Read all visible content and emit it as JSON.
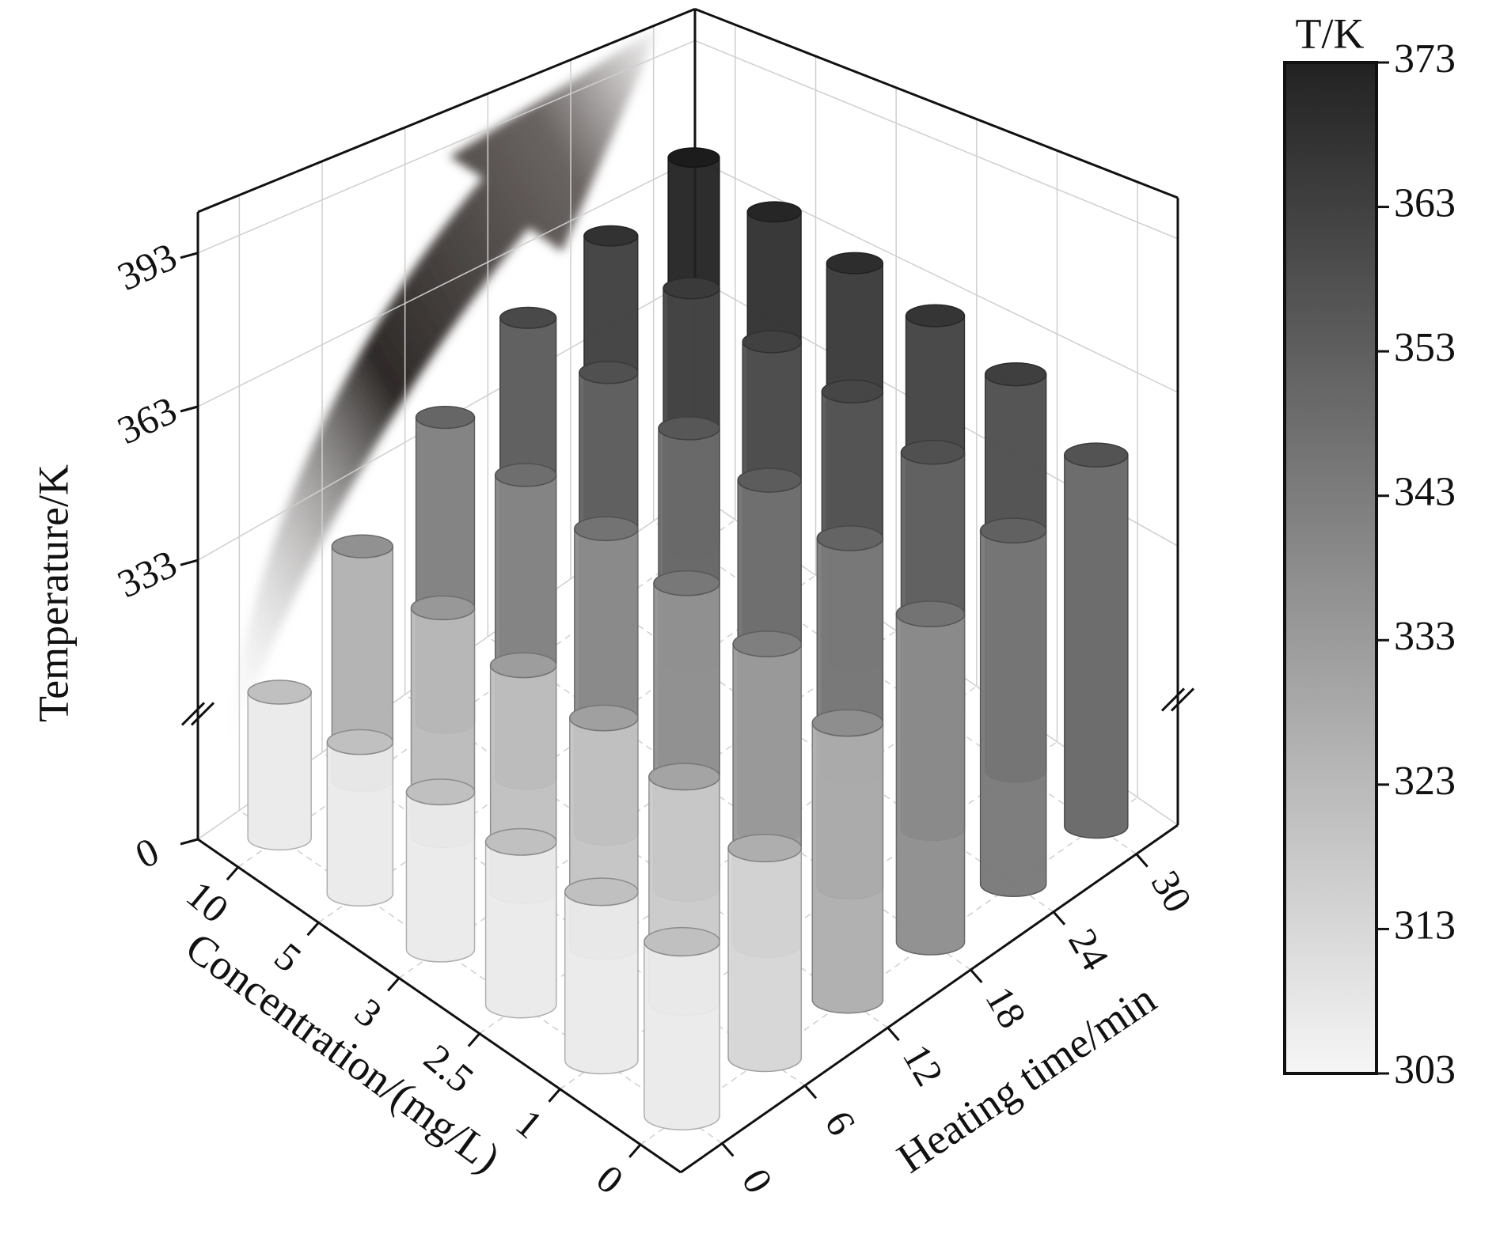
{
  "chart_data": {
    "type": "bar3d",
    "zlabel": "Temperature/K",
    "xlabel": "Concentration/(mg/L)",
    "ylabel": "Heating time/min",
    "x_categories": [
      "10",
      "5",
      "3",
      "2.5",
      "1",
      "0"
    ],
    "y_categories": [
      "0",
      "6",
      "12",
      "18",
      "24",
      "30"
    ],
    "values": [
      [
        307,
        307,
        307,
        307,
        307,
        307
      ],
      [
        326,
        323,
        321,
        320,
        318,
        314
      ],
      [
        343,
        340,
        338,
        336,
        333,
        327
      ],
      [
        355,
        352,
        349,
        347,
        344,
        338
      ],
      [
        364,
        361,
        358,
        356,
        352,
        345
      ],
      [
        373,
        369,
        366,
        363,
        359,
        351
      ]
    ],
    "zlim": [
      0,
      401
    ],
    "zbreak": 303,
    "zticks": [
      0,
      333,
      363,
      393
    ],
    "colorbar": {
      "label": "T/K",
      "lim": [
        303,
        373
      ],
      "ticks": [
        303,
        313,
        323,
        333,
        343,
        353,
        363,
        373
      ],
      "colors": [
        "#f6f6f6",
        "#222222"
      ]
    }
  }
}
